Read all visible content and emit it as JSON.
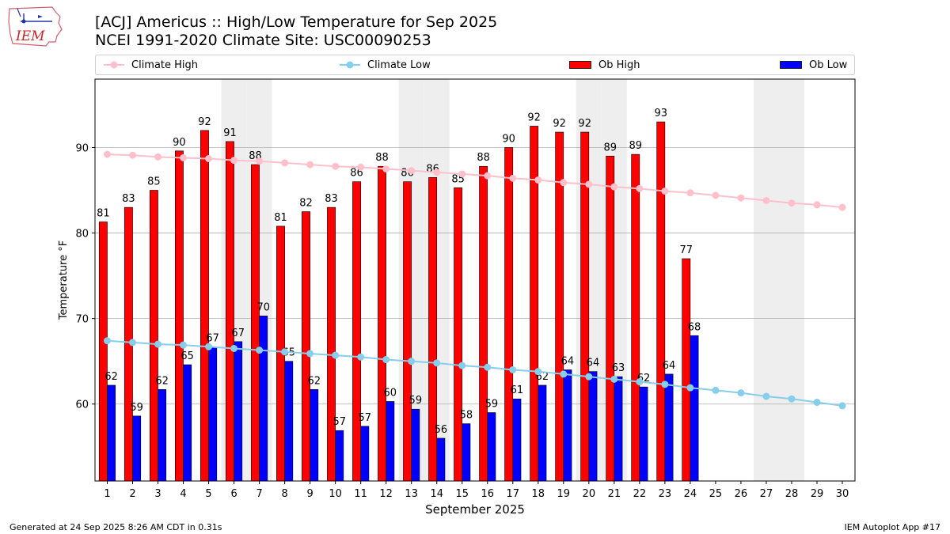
{
  "header": {
    "logo_text": "IEM",
    "title_line1": "[ACJ] Americus :: High/Low Temperature for Sep 2025",
    "title_line2": "NCEI 1991-2020 Climate Site: USC00090253"
  },
  "footer": {
    "left": "Generated at 24 Sep 2025 8:26 AM CDT in 0.31s",
    "right": "IEM Autoplot App #17"
  },
  "colors": {
    "ob_high": "#ff0000",
    "ob_low": "#0000ff",
    "climate_high": "#ffc0cb",
    "climate_low": "#87ceeb",
    "weekend_shade": "#eeeeee",
    "grid": "#b0b0b0"
  },
  "chart_data": {
    "type": "bar",
    "title": "[ACJ] Americus :: High/Low Temperature for Sep 2025",
    "xlabel": "September 2025",
    "ylabel": "Temperature °F",
    "ylim": [
      51,
      98
    ],
    "yticks": [
      60,
      70,
      80,
      90
    ],
    "grid": true,
    "legend_position": "top",
    "categories": [
      "1",
      "2",
      "3",
      "4",
      "5",
      "6",
      "7",
      "8",
      "9",
      "10",
      "11",
      "12",
      "13",
      "14",
      "15",
      "16",
      "17",
      "18",
      "19",
      "20",
      "21",
      "22",
      "23",
      "24",
      "25",
      "26",
      "27",
      "28",
      "29",
      "30"
    ],
    "shaded_days": [
      6,
      7,
      13,
      14,
      20,
      21,
      27,
      28
    ],
    "series": [
      {
        "name": "Climate High",
        "type": "line",
        "values": [
          89.2,
          89.1,
          88.9,
          88.8,
          88.7,
          88.5,
          88.4,
          88.2,
          88.0,
          87.8,
          87.7,
          87.5,
          87.3,
          87.1,
          86.9,
          86.7,
          86.4,
          86.2,
          85.9,
          85.7,
          85.4,
          85.2,
          84.9,
          84.7,
          84.4,
          84.1,
          83.8,
          83.5,
          83.3,
          83.0
        ]
      },
      {
        "name": "Climate Low",
        "type": "line",
        "values": [
          67.4,
          67.2,
          67.0,
          66.9,
          66.7,
          66.5,
          66.3,
          66.1,
          65.9,
          65.7,
          65.5,
          65.2,
          65.0,
          64.8,
          64.5,
          64.3,
          64.0,
          63.8,
          63.5,
          63.2,
          62.9,
          62.6,
          62.3,
          61.9,
          61.6,
          61.3,
          60.9,
          60.6,
          60.2,
          59.8
        ]
      },
      {
        "name": "Ob High",
        "type": "bar",
        "values": [
          81.3,
          83,
          85,
          89.6,
          92,
          90.7,
          88,
          80.8,
          82.5,
          83,
          86,
          87.8,
          86,
          86.5,
          85.3,
          87.8,
          90,
          92.5,
          91.8,
          91.8,
          89,
          89.2,
          93,
          77,
          null,
          null,
          null,
          null,
          null,
          null
        ],
        "labels": [
          "81",
          "83",
          "85",
          "90",
          "92",
          "91",
          "88",
          "81",
          "82",
          "83",
          "86",
          "88",
          "86",
          "86",
          "85",
          "88",
          "90",
          "92",
          "92",
          "92",
          "89",
          "89",
          "93",
          "77",
          "",
          "",
          "",
          "",
          "",
          ""
        ]
      },
      {
        "name": "Ob Low",
        "type": "bar",
        "values": [
          62.2,
          58.6,
          61.7,
          64.6,
          66.7,
          67.3,
          70.3,
          65,
          61.7,
          56.9,
          57.4,
          60.3,
          59.4,
          56,
          57.7,
          59,
          60.6,
          62.2,
          64,
          63.8,
          63.2,
          62,
          63.5,
          68,
          null,
          null,
          null,
          null,
          null,
          null
        ],
        "labels": [
          "62",
          "59",
          "62",
          "65",
          "67",
          "67",
          "70",
          "65",
          "62",
          "57",
          "57",
          "60",
          "59",
          "56",
          "58",
          "59",
          "61",
          "62",
          "64",
          "64",
          "63",
          "62",
          "64",
          "68",
          "",
          "",
          "",
          "",
          "",
          ""
        ]
      }
    ]
  }
}
